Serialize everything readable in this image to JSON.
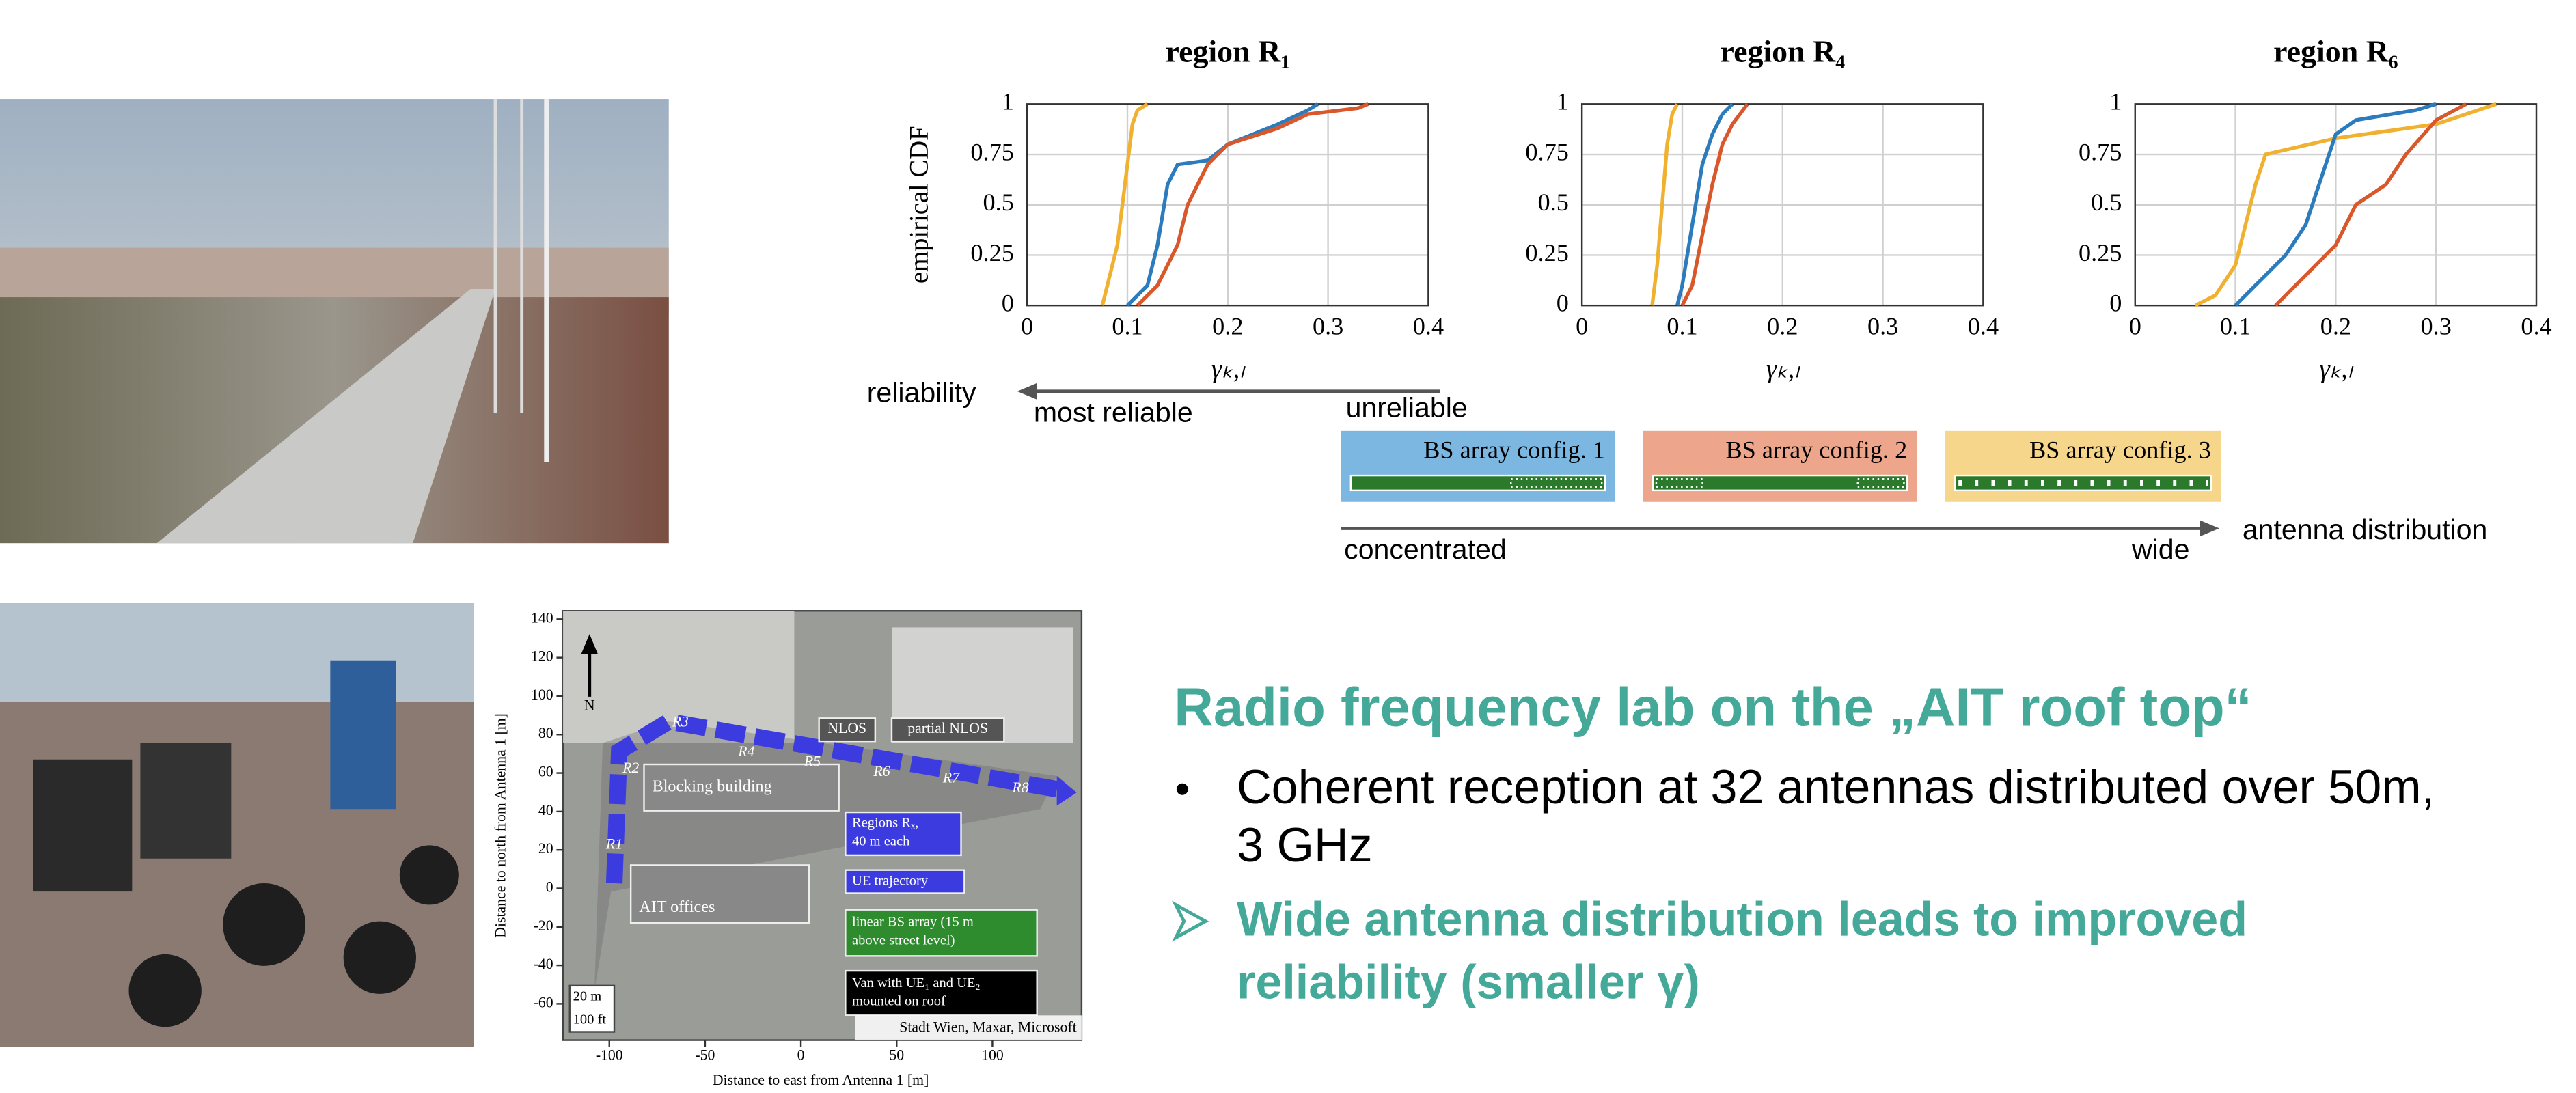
{
  "chart_data": [
    {
      "type": "line",
      "title": "region R₁",
      "xlabel": "γₖ,ₗ",
      "ylabel": "empirical CDF",
      "xlim": [
        0,
        0.4
      ],
      "ylim": [
        0,
        1
      ],
      "xticks": [
        0,
        0.1,
        0.2,
        0.3,
        0.4
      ],
      "yticks": [
        0,
        0.25,
        0.5,
        0.75,
        1
      ],
      "grid": true,
      "series": [
        {
          "color": "#f0b030",
          "x": [
            0.075,
            0.08,
            0.09,
            0.095,
            0.1,
            0.105,
            0.11,
            0.12
          ],
          "values": [
            0,
            0.1,
            0.3,
            0.5,
            0.7,
            0.9,
            0.97,
            1
          ]
        },
        {
          "color": "#2b7bbd",
          "x": [
            0.1,
            0.12,
            0.13,
            0.14,
            0.15,
            0.18,
            0.2,
            0.25,
            0.28,
            0.29
          ],
          "values": [
            0,
            0.1,
            0.3,
            0.6,
            0.7,
            0.72,
            0.8,
            0.9,
            0.97,
            1
          ]
        },
        {
          "color": "#d9582b",
          "x": [
            0.11,
            0.13,
            0.15,
            0.16,
            0.18,
            0.2,
            0.25,
            0.28,
            0.33,
            0.34
          ],
          "values": [
            0,
            0.1,
            0.3,
            0.5,
            0.7,
            0.8,
            0.88,
            0.95,
            0.98,
            1
          ]
        }
      ]
    },
    {
      "type": "line",
      "title": "region R₄",
      "xlabel": "γₖ,ₗ",
      "xlim": [
        0,
        0.4
      ],
      "ylim": [
        0,
        1
      ],
      "xticks": [
        0,
        0.1,
        0.2,
        0.3,
        0.4
      ],
      "yticks": [
        0,
        0.25,
        0.5,
        0.75,
        1
      ],
      "grid": true,
      "series": [
        {
          "color": "#f0b030",
          "x": [
            0.07,
            0.075,
            0.08,
            0.085,
            0.09,
            0.095
          ],
          "values": [
            0,
            0.2,
            0.5,
            0.8,
            0.95,
            1
          ]
        },
        {
          "color": "#2b7bbd",
          "x": [
            0.095,
            0.1,
            0.11,
            0.12,
            0.13,
            0.14,
            0.15
          ],
          "values": [
            0,
            0.1,
            0.4,
            0.7,
            0.85,
            0.95,
            1
          ]
        },
        {
          "color": "#d9582b",
          "x": [
            0.1,
            0.11,
            0.12,
            0.13,
            0.14,
            0.15,
            0.165
          ],
          "values": [
            0,
            0.1,
            0.35,
            0.6,
            0.8,
            0.9,
            1
          ]
        }
      ]
    },
    {
      "type": "line",
      "title": "region R₆",
      "xlabel": "γₖ,ₗ",
      "xlim": [
        0,
        0.4
      ],
      "ylim": [
        0,
        1
      ],
      "xticks": [
        0,
        0.1,
        0.2,
        0.3,
        0.4
      ],
      "yticks": [
        0,
        0.25,
        0.5,
        0.75,
        1
      ],
      "grid": true,
      "series": [
        {
          "color": "#f0b030",
          "x": [
            0.06,
            0.08,
            0.1,
            0.11,
            0.12,
            0.13,
            0.2,
            0.3,
            0.36
          ],
          "values": [
            0,
            0.05,
            0.2,
            0.4,
            0.6,
            0.75,
            0.83,
            0.9,
            1
          ]
        },
        {
          "color": "#2b7bbd",
          "x": [
            0.1,
            0.12,
            0.15,
            0.17,
            0.19,
            0.2,
            0.22,
            0.28,
            0.3
          ],
          "values": [
            0,
            0.1,
            0.25,
            0.4,
            0.7,
            0.85,
            0.92,
            0.97,
            1
          ]
        },
        {
          "color": "#d9582b",
          "x": [
            0.14,
            0.17,
            0.2,
            0.22,
            0.25,
            0.27,
            0.3,
            0.33
          ],
          "values": [
            0,
            0.15,
            0.3,
            0.5,
            0.6,
            0.75,
            0.92,
            1
          ]
        }
      ]
    }
  ],
  "diagram": {
    "reliability": "reliability",
    "most_reliable": "most reliable",
    "unreliable": "unreliable",
    "configs": [
      "BS array config. 1",
      "BS array config. 2",
      "BS array config. 3"
    ],
    "concentrated": "concentrated",
    "wide": "wide",
    "antenna_distribution": "antenna distribution"
  },
  "map": {
    "xlabel": "Distance to east from Antenna 1 [m]",
    "ylabel": "Distance to north from Antenna 1 [m]",
    "xticks": [
      -100,
      -50,
      0,
      50,
      100
    ],
    "yticks": [
      140,
      120,
      100,
      80,
      60,
      40,
      20,
      0,
      -20,
      -40,
      -60
    ],
    "north": "N",
    "nlos": "NLOS",
    "partial_nlos": "partial NLOS",
    "blocking": "Blocking building",
    "regions": [
      "R1",
      "R2",
      "R3",
      "R4",
      "R5",
      "R6",
      "R7",
      "R8"
    ],
    "regions_note": [
      "Regions Rₓ,",
      "40 m each"
    ],
    "ue_trajectory": "UE trajectory",
    "ait_offices": "AIT offices",
    "bs_array": [
      "linear BS array (15 m",
      "above street level)"
    ],
    "van": [
      "Van with UE₁ and UE₂",
      "mounted on roof"
    ],
    "scale_m": "20 m",
    "scale_ft": "100 ft",
    "credit": "Stadt Wien, Maxar, Microsoft"
  },
  "slide": {
    "heading": "Radio frequency lab on the „AIT roof top“",
    "bullet": [
      "Coherent reception at 32 antennas distributed over 50m,",
      "3 GHz"
    ],
    "subbullet": [
      "Wide antenna distribution leads to improved",
      "reliability (smaller γ)"
    ]
  }
}
